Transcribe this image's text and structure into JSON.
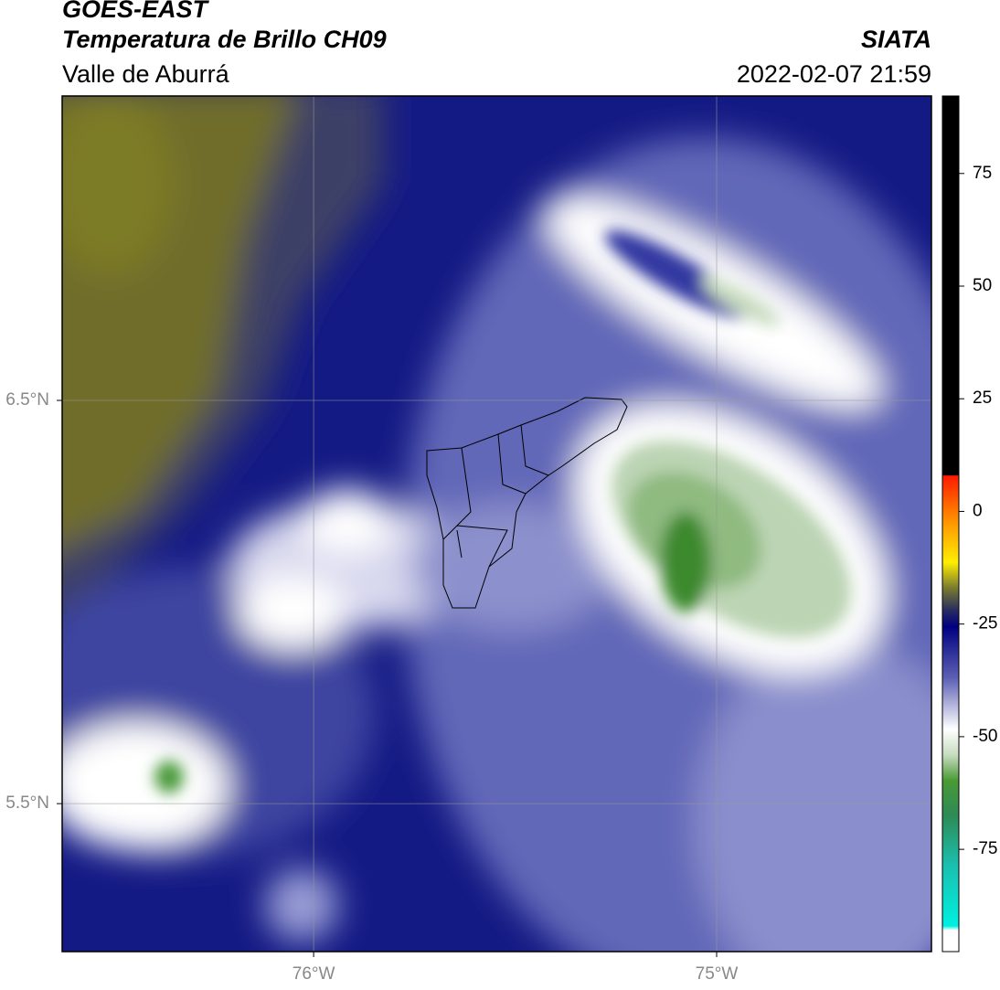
{
  "header": {
    "title": "GOES-EAST",
    "subtitle": "Temperatura de Brillo CH09",
    "region": "Valle de Aburrá",
    "source": "SIATA",
    "datetime": "2022-02-07 21:59"
  },
  "map": {
    "xlim": [
      -76.624,
      -74.467
    ],
    "ylim": [
      5.133,
      7.255
    ],
    "xticks": [
      {
        "value": -76,
        "label": "76°W"
      },
      {
        "value": -75,
        "label": "75°W"
      }
    ],
    "yticks": [
      {
        "value": 6.5,
        "label": "6.5°N"
      },
      {
        "value": 5.5,
        "label": "5.5°N"
      }
    ],
    "grid": true
  },
  "colorbar": {
    "clim": [
      -97.7,
      92.2
    ],
    "ticks": [
      75,
      50,
      25,
      0,
      -25,
      -50,
      -75
    ]
  }
}
